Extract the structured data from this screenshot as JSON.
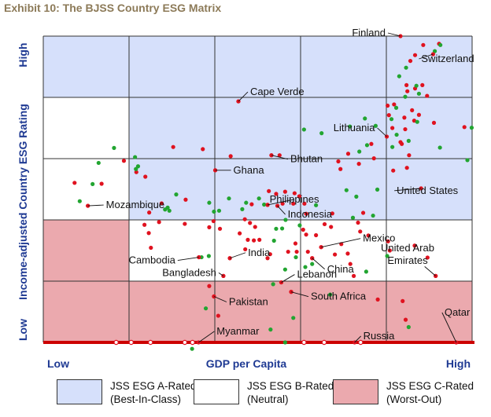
{
  "title": "Exhibit 10: The BJSS Country ESG Matrix",
  "colors": {
    "a_rated": "#d6e0fb",
    "b_rated": "#ffffff",
    "c_rated": "#eba9ae",
    "axis_text": "#1f3a93",
    "point_red": "#e0121f",
    "point_green": "#22a531",
    "baseline": "#cc0000",
    "title": "#8c7a58"
  },
  "legend": [
    {
      "line1": "JSS ESG A-Rated",
      "line2": "(Best-In-Class)",
      "color": "#d6e0fb"
    },
    {
      "line1": "JSS ESG B-Rated",
      "line2": "(Neutral)",
      "color": "#ffffff"
    },
    {
      "line1": "JSS ESG C-Rated",
      "line2": "(Worst-Out)",
      "color": "#eba9ae"
    }
  ],
  "chart_data": {
    "type": "scatter",
    "xlabel": "GDP per Capita",
    "ylabel": "Income-adjusted Country ESG Rating",
    "x_tick_labels": {
      "low": "Low",
      "high": "High"
    },
    "y_tick_labels": {
      "low": "Low",
      "high": "High"
    },
    "xlim": [
      0,
      100
    ],
    "ylim": [
      0,
      100
    ],
    "grid": true,
    "grid_columns": 5,
    "grid_rows": 5,
    "zones": [
      {
        "rating": "A",
        "description": "Top band plus upper bands excluding the lowest-GDP column",
        "color_key": "a_rated"
      },
      {
        "rating": "B",
        "description": "Middle band and lowest-GDP column of upper bands",
        "color_key": "b_rated"
      },
      {
        "rating": "C",
        "description": "Bottom band and lowest-GDP column of the middle band",
        "color_key": "c_rated"
      }
    ],
    "labeled_points": [
      {
        "name": "Finland",
        "x": 83.3,
        "y": 100
      },
      {
        "name": "Switzerland",
        "x": 90.9,
        "y": 94.1
      },
      {
        "name": "Cape Verde",
        "x": 45.5,
        "y": 78.7
      },
      {
        "name": "Lithuania",
        "x": 80.1,
        "y": 67.2
      },
      {
        "name": "Bhutan",
        "x": 53.2,
        "y": 61.1
      },
      {
        "name": "Ghana",
        "x": 40.1,
        "y": 56.2
      },
      {
        "name": "United States",
        "x": 88.1,
        "y": 50.3
      },
      {
        "name": "Mozambique",
        "x": 10.4,
        "y": 44.6
      },
      {
        "name": "Philippines",
        "x": 52.3,
        "y": 44.9
      },
      {
        "name": "Indonesia",
        "x": 54.6,
        "y": 44.6
      },
      {
        "name": "Mexico",
        "x": 64.8,
        "y": 31.1
      },
      {
        "name": "Cambodia",
        "x": 36.3,
        "y": 27.8
      },
      {
        "name": "India",
        "x": 43.5,
        "y": 27.5
      },
      {
        "name": "China",
        "x": 62.7,
        "y": 27.5
      },
      {
        "name": "United Arab Emirates",
        "x": 91.5,
        "y": 21.7
      },
      {
        "name": "Bangladesh",
        "x": 42.0,
        "y": 21.7
      },
      {
        "name": "Lebanon",
        "x": 55.5,
        "y": 19.6
      },
      {
        "name": "Pakistan",
        "x": 39.8,
        "y": 15.0
      },
      {
        "name": "South Africa",
        "x": 57.8,
        "y": 16.5
      },
      {
        "name": "Myanmar",
        "x": 36.2,
        "y": 0
      },
      {
        "name": "Russia",
        "x": 72.6,
        "y": 0
      },
      {
        "name": "Qatar",
        "x": 96.3,
        "y": 0
      }
    ],
    "series": [
      {
        "color_key": "point_red",
        "points": [
          [
            88.6,
            97.1
          ],
          [
            92.3,
            97.5
          ],
          [
            86.7,
            93.8
          ],
          [
            85.6,
            91.9
          ],
          [
            84.7,
            84.0
          ],
          [
            86.7,
            82.9
          ],
          [
            80.3,
            77.3
          ],
          [
            81.8,
            77.7
          ],
          [
            84.9,
            82.0
          ],
          [
            88.4,
            84.0
          ],
          [
            80.6,
            74.2
          ],
          [
            86.0,
            75.8
          ],
          [
            89.5,
            80.5
          ],
          [
            84.2,
            73.4
          ],
          [
            86.5,
            72.4
          ],
          [
            81.4,
            70.0
          ],
          [
            84.4,
            69.6
          ],
          [
            87.6,
            74.3
          ],
          [
            91.1,
            71.7
          ],
          [
            98.2,
            70.3
          ],
          [
            83.3,
            65.4
          ],
          [
            83.6,
            64.8
          ],
          [
            68.8,
            59.1
          ],
          [
            71.1,
            61.6
          ],
          [
            76.5,
            64.8
          ],
          [
            77.1,
            60.1
          ],
          [
            73.6,
            58.3
          ],
          [
            84.8,
            57.0
          ],
          [
            85.3,
            61.1
          ],
          [
            81.6,
            56.1
          ],
          [
            69.3,
            56.6
          ],
          [
            55.1,
            61.1
          ],
          [
            30.3,
            63.8
          ],
          [
            37.2,
            63.1
          ],
          [
            43.7,
            60.8
          ],
          [
            18.8,
            59.3
          ],
          [
            21.7,
            55.6
          ],
          [
            13.6,
            51.8
          ],
          [
            23.8,
            54.1
          ],
          [
            7.3,
            52.1
          ],
          [
            10.4,
            44.6
          ],
          [
            24.7,
            42.4
          ],
          [
            33.2,
            46.6
          ],
          [
            27.6,
            45.4
          ],
          [
            27.0,
            39.3
          ],
          [
            23.6,
            38.4
          ],
          [
            24.6,
            35.7
          ],
          [
            25.1,
            30.9
          ],
          [
            33.0,
            38.7
          ],
          [
            39.7,
            39.6
          ],
          [
            38.7,
            37.6
          ],
          [
            41.2,
            37.1
          ],
          [
            47.0,
            40.2
          ],
          [
            48.2,
            39.0
          ],
          [
            49.4,
            37.7
          ],
          [
            45.8,
            35.6
          ],
          [
            47.7,
            33.5
          ],
          [
            50.4,
            33.5
          ],
          [
            49.1,
            33.3
          ],
          [
            47.1,
            30.4
          ],
          [
            43.5,
            27.5
          ],
          [
            52.3,
            27.5
          ],
          [
            36.3,
            27.8
          ],
          [
            42.0,
            21.7
          ],
          [
            39.8,
            15.0
          ],
          [
            38.7,
            18.4
          ],
          [
            45.5,
            78.7
          ],
          [
            53.2,
            61.1
          ],
          [
            40.1,
            56.2
          ],
          [
            52.3,
            44.9
          ],
          [
            54.6,
            44.6
          ],
          [
            48.6,
            45.1
          ],
          [
            52.6,
            49.4
          ],
          [
            54.3,
            48.5
          ],
          [
            56.4,
            49.2
          ],
          [
            58.6,
            48.7
          ],
          [
            59.7,
            47.7
          ],
          [
            55.8,
            45.3
          ],
          [
            58.3,
            45.3
          ],
          [
            60.9,
            45.3
          ],
          [
            61.3,
            42.0
          ],
          [
            60.6,
            36.8
          ],
          [
            64.8,
            31.1
          ],
          [
            62.7,
            27.5
          ],
          [
            58.8,
            32.3
          ],
          [
            61.3,
            35.2
          ],
          [
            63.6,
            35.0
          ],
          [
            65.6,
            38.6
          ],
          [
            67.4,
            42.1
          ],
          [
            67.1,
            37.7
          ],
          [
            69.5,
            32.1
          ],
          [
            73.9,
            36.2
          ],
          [
            75.8,
            34.9
          ],
          [
            80.4,
            33.0
          ],
          [
            80.8,
            30.0
          ],
          [
            86.6,
            31.6
          ],
          [
            73.4,
            39.1
          ],
          [
            74.6,
            42.3
          ],
          [
            91.5,
            21.7
          ],
          [
            71.0,
            29.0
          ],
          [
            68.0,
            28.7
          ],
          [
            55.5,
            19.6
          ],
          [
            57.8,
            16.5
          ],
          [
            40.8,
            8.7
          ],
          [
            78.0,
            14.0
          ],
          [
            83.8,
            13.5
          ],
          [
            84.5,
            7.4
          ],
          [
            96.3,
            0
          ],
          [
            89.6,
            27.7
          ],
          [
            71.6,
            25.6
          ],
          [
            72.4,
            21.7
          ],
          [
            52.9,
            28.8
          ],
          [
            57.1,
            29.6
          ],
          [
            59.1,
            29.6
          ],
          [
            61.7,
            29.6
          ]
        ]
      },
      {
        "color_key": "point_green",
        "points": [
          [
            83.0,
            86.9
          ],
          [
            84.6,
            89.7
          ],
          [
            92.6,
            97.1
          ],
          [
            91.3,
            95.1
          ],
          [
            87.0,
            83.8
          ],
          [
            87.6,
            81.2
          ],
          [
            82.3,
            76.6
          ],
          [
            84.4,
            80.2
          ],
          [
            87.2,
            72.0
          ],
          [
            99.9,
            70.1
          ],
          [
            92.5,
            63.6
          ],
          [
            85.2,
            65.8
          ],
          [
            75.5,
            64.4
          ],
          [
            73.7,
            62.3
          ],
          [
            81.4,
            63.8
          ],
          [
            82.4,
            67.8
          ],
          [
            77.5,
            70.7
          ],
          [
            81.2,
            72.9
          ],
          [
            75.0,
            73.1
          ],
          [
            71.5,
            70.5
          ],
          [
            60.8,
            69.5
          ],
          [
            64.9,
            68.3
          ],
          [
            98.9,
            59.5
          ],
          [
            16.5,
            63.5
          ],
          [
            21.4,
            60.5
          ],
          [
            12.9,
            58.6
          ],
          [
            22.1,
            57.5
          ],
          [
            21.6,
            56.6
          ],
          [
            11.5,
            51.7
          ],
          [
            8.5,
            46.1
          ],
          [
            28.4,
            43.4
          ],
          [
            29.4,
            43.0
          ],
          [
            29.0,
            44.0
          ],
          [
            38.7,
            45.6
          ],
          [
            39.8,
            42.7
          ],
          [
            41.0,
            43.0
          ],
          [
            43.3,
            47.0
          ],
          [
            46.4,
            43.5
          ],
          [
            47.3,
            45.6
          ],
          [
            50.3,
            47.0
          ],
          [
            51.5,
            45.0
          ],
          [
            56.5,
            40.0
          ],
          [
            54.3,
            37.1
          ],
          [
            55.7,
            37.2
          ],
          [
            53.8,
            33.2
          ],
          [
            59.8,
            38.2
          ],
          [
            72.2,
            40.7
          ],
          [
            73.0,
            47.6
          ],
          [
            76.9,
            41.4
          ],
          [
            77.9,
            49.9
          ],
          [
            70.7,
            49.7
          ],
          [
            63.6,
            44.8
          ],
          [
            61.1,
            24.6
          ],
          [
            62.7,
            25.6
          ],
          [
            56.4,
            23.8
          ],
          [
            58.9,
            27.8
          ],
          [
            75.3,
            23.1
          ],
          [
            36.9,
            27.8
          ],
          [
            31.0,
            48.3
          ],
          [
            38.6,
            28.2
          ],
          [
            80.2,
            28.2
          ],
          [
            66.9,
            15.6
          ],
          [
            53.6,
            19.0
          ],
          [
            53.0,
            4.2
          ],
          [
            56.4,
            0
          ],
          [
            34.7,
            -2.1
          ],
          [
            85.2,
            5.0
          ],
          [
            37.9,
            11.1
          ],
          [
            58.3,
            8.0
          ]
        ]
      },
      {
        "color_key": "point_red",
        "hollow": true,
        "points": [
          [
            17.0,
            0
          ],
          [
            20.5,
            0
          ],
          [
            25.0,
            0
          ],
          [
            33.0,
            0
          ],
          [
            34.8,
            0
          ],
          [
            60.8,
            0
          ],
          [
            65.5,
            0
          ],
          [
            74.0,
            0
          ]
        ]
      }
    ]
  }
}
